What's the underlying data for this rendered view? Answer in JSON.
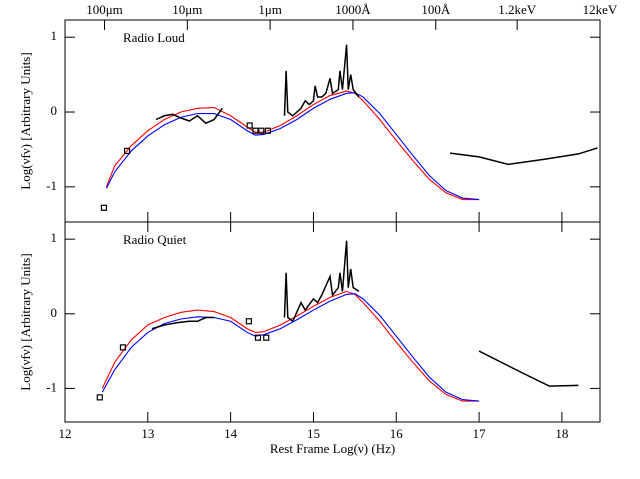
{
  "chart_data": [
    {
      "type": "line",
      "title": "Radio Loud",
      "ylabel": "Log(νfν) [Arbitrary Units]",
      "xlim": [
        12,
        18.46
      ],
      "ylim": [
        -1.47,
        1.23
      ],
      "yticks": [
        -1,
        0,
        1
      ],
      "x2ticks": [
        {
          "value": 12.477,
          "label": "100μm"
        },
        {
          "value": 13.477,
          "label": "10μm"
        },
        {
          "value": 14.477,
          "label": "1μm"
        },
        {
          "value": 15.477,
          "label": "1000Å"
        },
        {
          "value": 16.477,
          "label": "100Å"
        },
        {
          "value": 17.46,
          "label": "1.2keV"
        },
        {
          "value": 18.46,
          "label": "12keV"
        }
      ],
      "series": [
        {
          "color": "#ff0000",
          "style": "line",
          "x": [
            12.5,
            12.6,
            12.8,
            13.0,
            13.2,
            13.4,
            13.6,
            13.8,
            14.0,
            14.2,
            14.3,
            14.4,
            14.6,
            14.8,
            15.0,
            15.2,
            15.4,
            15.5,
            15.6,
            15.8,
            16.0,
            16.2,
            16.4,
            16.6,
            16.8,
            17.0
          ],
          "values": [
            -1.0,
            -0.72,
            -0.45,
            -0.25,
            -0.1,
            0.0,
            0.05,
            0.06,
            -0.05,
            -0.2,
            -0.27,
            -0.27,
            -0.18,
            -0.05,
            0.1,
            0.22,
            0.28,
            0.25,
            0.15,
            -0.1,
            -0.38,
            -0.65,
            -0.9,
            -1.08,
            -1.17,
            -1.17
          ]
        },
        {
          "color": "#0000ff",
          "style": "line",
          "x": [
            12.5,
            12.6,
            12.8,
            13.0,
            13.2,
            13.4,
            13.6,
            13.8,
            14.0,
            14.2,
            14.3,
            14.4,
            14.6,
            14.8,
            15.0,
            15.2,
            15.4,
            15.5,
            15.6,
            15.8,
            16.0,
            16.2,
            16.4,
            16.6,
            16.8,
            17.0
          ],
          "values": [
            -1.02,
            -0.8,
            -0.52,
            -0.32,
            -0.17,
            -0.07,
            -0.02,
            -0.02,
            -0.1,
            -0.25,
            -0.31,
            -0.3,
            -0.22,
            -0.1,
            0.05,
            0.17,
            0.25,
            0.26,
            0.2,
            -0.02,
            -0.3,
            -0.58,
            -0.85,
            -1.05,
            -1.15,
            -1.17
          ]
        },
        {
          "color": "#000000",
          "style": "line",
          "x": [
            13.1,
            13.2,
            13.3,
            13.4,
            13.5,
            13.6,
            13.7,
            13.8,
            13.9,
            14.2,
            14.65,
            14.67,
            14.69,
            14.75,
            14.85,
            14.9,
            14.95,
            15.0,
            15.02,
            15.05,
            15.1,
            15.15,
            15.2,
            15.23,
            15.3,
            15.32,
            15.35,
            15.4,
            15.42,
            15.45,
            15.48,
            15.55
          ],
          "values": [
            -0.1,
            -0.05,
            -0.03,
            -0.08,
            -0.12,
            -0.05,
            -0.15,
            -0.1,
            0.05,
            null,
            -0.05,
            0.55,
            0.0,
            -0.05,
            0.05,
            0.15,
            0.1,
            0.15,
            0.35,
            0.2,
            0.2,
            0.25,
            0.45,
            0.25,
            0.3,
            0.55,
            0.3,
            0.9,
            0.3,
            0.5,
            0.3,
            0.2
          ]
        },
        {
          "color": "#000000",
          "style": "markers",
          "x": [
            12.47,
            12.75,
            14.23,
            14.3,
            14.37,
            14.45
          ],
          "values": [
            -1.28,
            -0.52,
            -0.18,
            -0.25,
            -0.25,
            -0.25
          ]
        },
        {
          "color": "#000000",
          "style": "line",
          "x": [
            16.65,
            17.0,
            17.35,
            17.8,
            18.2,
            18.43
          ],
          "values": [
            -0.55,
            -0.6,
            -0.7,
            -0.63,
            -0.56,
            -0.48
          ]
        }
      ]
    },
    {
      "type": "line",
      "title": "Radio Quiet",
      "ylabel": "Log(νfν) [Arbitrary Units]",
      "xlabel": "Rest Frame Log(ν) (Hz)",
      "xlim": [
        12,
        18.46
      ],
      "ylim": [
        -1.45,
        1.23
      ],
      "yticks": [
        -1,
        0,
        1
      ],
      "xticks": [
        12,
        13,
        14,
        15,
        16,
        17,
        18
      ],
      "series": [
        {
          "color": "#ff0000",
          "style": "line",
          "x": [
            12.45,
            12.6,
            12.8,
            13.0,
            13.2,
            13.4,
            13.6,
            13.8,
            14.0,
            14.2,
            14.3,
            14.4,
            14.6,
            14.8,
            15.0,
            15.2,
            15.4,
            15.5,
            15.6,
            15.8,
            16.0,
            16.2,
            16.4,
            16.6,
            16.8,
            17.0
          ],
          "values": [
            -1.0,
            -0.65,
            -0.35,
            -0.15,
            -0.05,
            0.02,
            0.05,
            0.03,
            -0.05,
            -0.2,
            -0.25,
            -0.24,
            -0.15,
            -0.03,
            0.1,
            0.22,
            0.3,
            0.26,
            0.15,
            -0.1,
            -0.38,
            -0.65,
            -0.9,
            -1.08,
            -1.17,
            -1.17
          ]
        },
        {
          "color": "#0000ff",
          "style": "line",
          "x": [
            12.45,
            12.6,
            12.8,
            13.0,
            13.2,
            13.4,
            13.6,
            13.8,
            14.0,
            14.2,
            14.3,
            14.4,
            14.6,
            14.8,
            15.0,
            15.2,
            15.4,
            15.5,
            15.6,
            15.8,
            16.0,
            16.2,
            16.4,
            16.6,
            16.8,
            17.0
          ],
          "values": [
            -1.05,
            -0.75,
            -0.45,
            -0.25,
            -0.13,
            -0.07,
            -0.04,
            -0.05,
            -0.1,
            -0.25,
            -0.3,
            -0.28,
            -0.2,
            -0.08,
            0.05,
            0.17,
            0.26,
            0.27,
            0.2,
            -0.02,
            -0.3,
            -0.58,
            -0.85,
            -1.05,
            -1.15,
            -1.17
          ]
        },
        {
          "color": "#000000",
          "style": "line",
          "x": [
            13.05,
            13.2,
            13.35,
            13.5,
            13.6,
            13.7,
            13.8,
            14.2,
            14.65,
            14.67,
            14.69,
            14.75,
            14.85,
            14.9,
            15.0,
            15.05,
            15.1,
            15.2,
            15.23,
            15.3,
            15.32,
            15.35,
            15.4,
            15.42,
            15.45,
            15.48,
            15.55
          ],
          "values": [
            -0.2,
            -0.15,
            -0.12,
            -0.1,
            -0.1,
            -0.05,
            -0.05,
            null,
            -0.05,
            0.55,
            -0.05,
            -0.1,
            0.15,
            0.05,
            0.2,
            0.15,
            0.25,
            0.5,
            0.25,
            0.35,
            0.55,
            0.3,
            0.98,
            0.35,
            0.6,
            0.35,
            0.3
          ]
        },
        {
          "color": "#000000",
          "style": "markers",
          "x": [
            12.42,
            12.7,
            14.22,
            14.33,
            14.43
          ],
          "values": [
            -1.12,
            -0.45,
            -0.1,
            -0.32,
            -0.32
          ]
        },
        {
          "color": "#000000",
          "style": "line",
          "x": [
            17.0,
            17.5,
            17.85,
            18.2
          ],
          "values": [
            -0.5,
            -0.78,
            -0.97,
            -0.96
          ]
        }
      ]
    }
  ]
}
